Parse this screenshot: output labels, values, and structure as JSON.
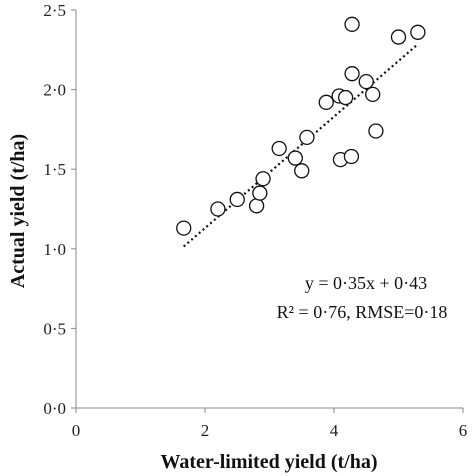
{
  "chart_data": {
    "type": "scatter",
    "xlabel": "Water-limited yield (t/ha)",
    "ylabel": "Actual yield (t/ha)",
    "xlim": [
      0,
      6
    ],
    "ylim": [
      0,
      2.5
    ],
    "xticks": [
      0,
      2,
      4,
      6
    ],
    "yticks": [
      0.0,
      0.5,
      1.0,
      1.5,
      2.0,
      2.5
    ],
    "xtick_labels": [
      "0",
      "2",
      "4",
      "6"
    ],
    "ytick_labels": [
      "0·0",
      "0·5",
      "1·0",
      "1·5",
      "2·0",
      "2·5"
    ],
    "grid": false,
    "points": [
      {
        "x": 1.67,
        "y": 1.13
      },
      {
        "x": 2.2,
        "y": 1.25
      },
      {
        "x": 2.5,
        "y": 1.31
      },
      {
        "x": 2.8,
        "y": 1.27
      },
      {
        "x": 2.85,
        "y": 1.35
      },
      {
        "x": 2.9,
        "y": 1.44
      },
      {
        "x": 3.15,
        "y": 1.63
      },
      {
        "x": 3.4,
        "y": 1.57
      },
      {
        "x": 3.5,
        "y": 1.49
      },
      {
        "x": 3.58,
        "y": 1.7
      },
      {
        "x": 3.88,
        "y": 1.92
      },
      {
        "x": 4.08,
        "y": 1.96
      },
      {
        "x": 4.1,
        "y": 1.56
      },
      {
        "x": 4.18,
        "y": 1.95
      },
      {
        "x": 4.27,
        "y": 1.58
      },
      {
        "x": 4.28,
        "y": 2.41
      },
      {
        "x": 4.28,
        "y": 2.1
      },
      {
        "x": 4.5,
        "y": 2.05
      },
      {
        "x": 4.6,
        "y": 1.97
      },
      {
        "x": 4.65,
        "y": 1.74
      },
      {
        "x": 5.0,
        "y": 2.33
      },
      {
        "x": 5.3,
        "y": 2.36
      }
    ],
    "trendline": {
      "slope": 0.35,
      "intercept": 0.43,
      "x_range": [
        1.67,
        5.3
      ],
      "style": "dotted"
    },
    "annotations": [
      {
        "text": "y = 0·35x + 0·43"
      },
      {
        "text": "R² = 0·76, RMSE=0·18"
      }
    ],
    "colors": {
      "marker_stroke": "#111111",
      "marker_fill": "#ffffff",
      "axis": "#888888",
      "trendline": "#111111"
    }
  }
}
